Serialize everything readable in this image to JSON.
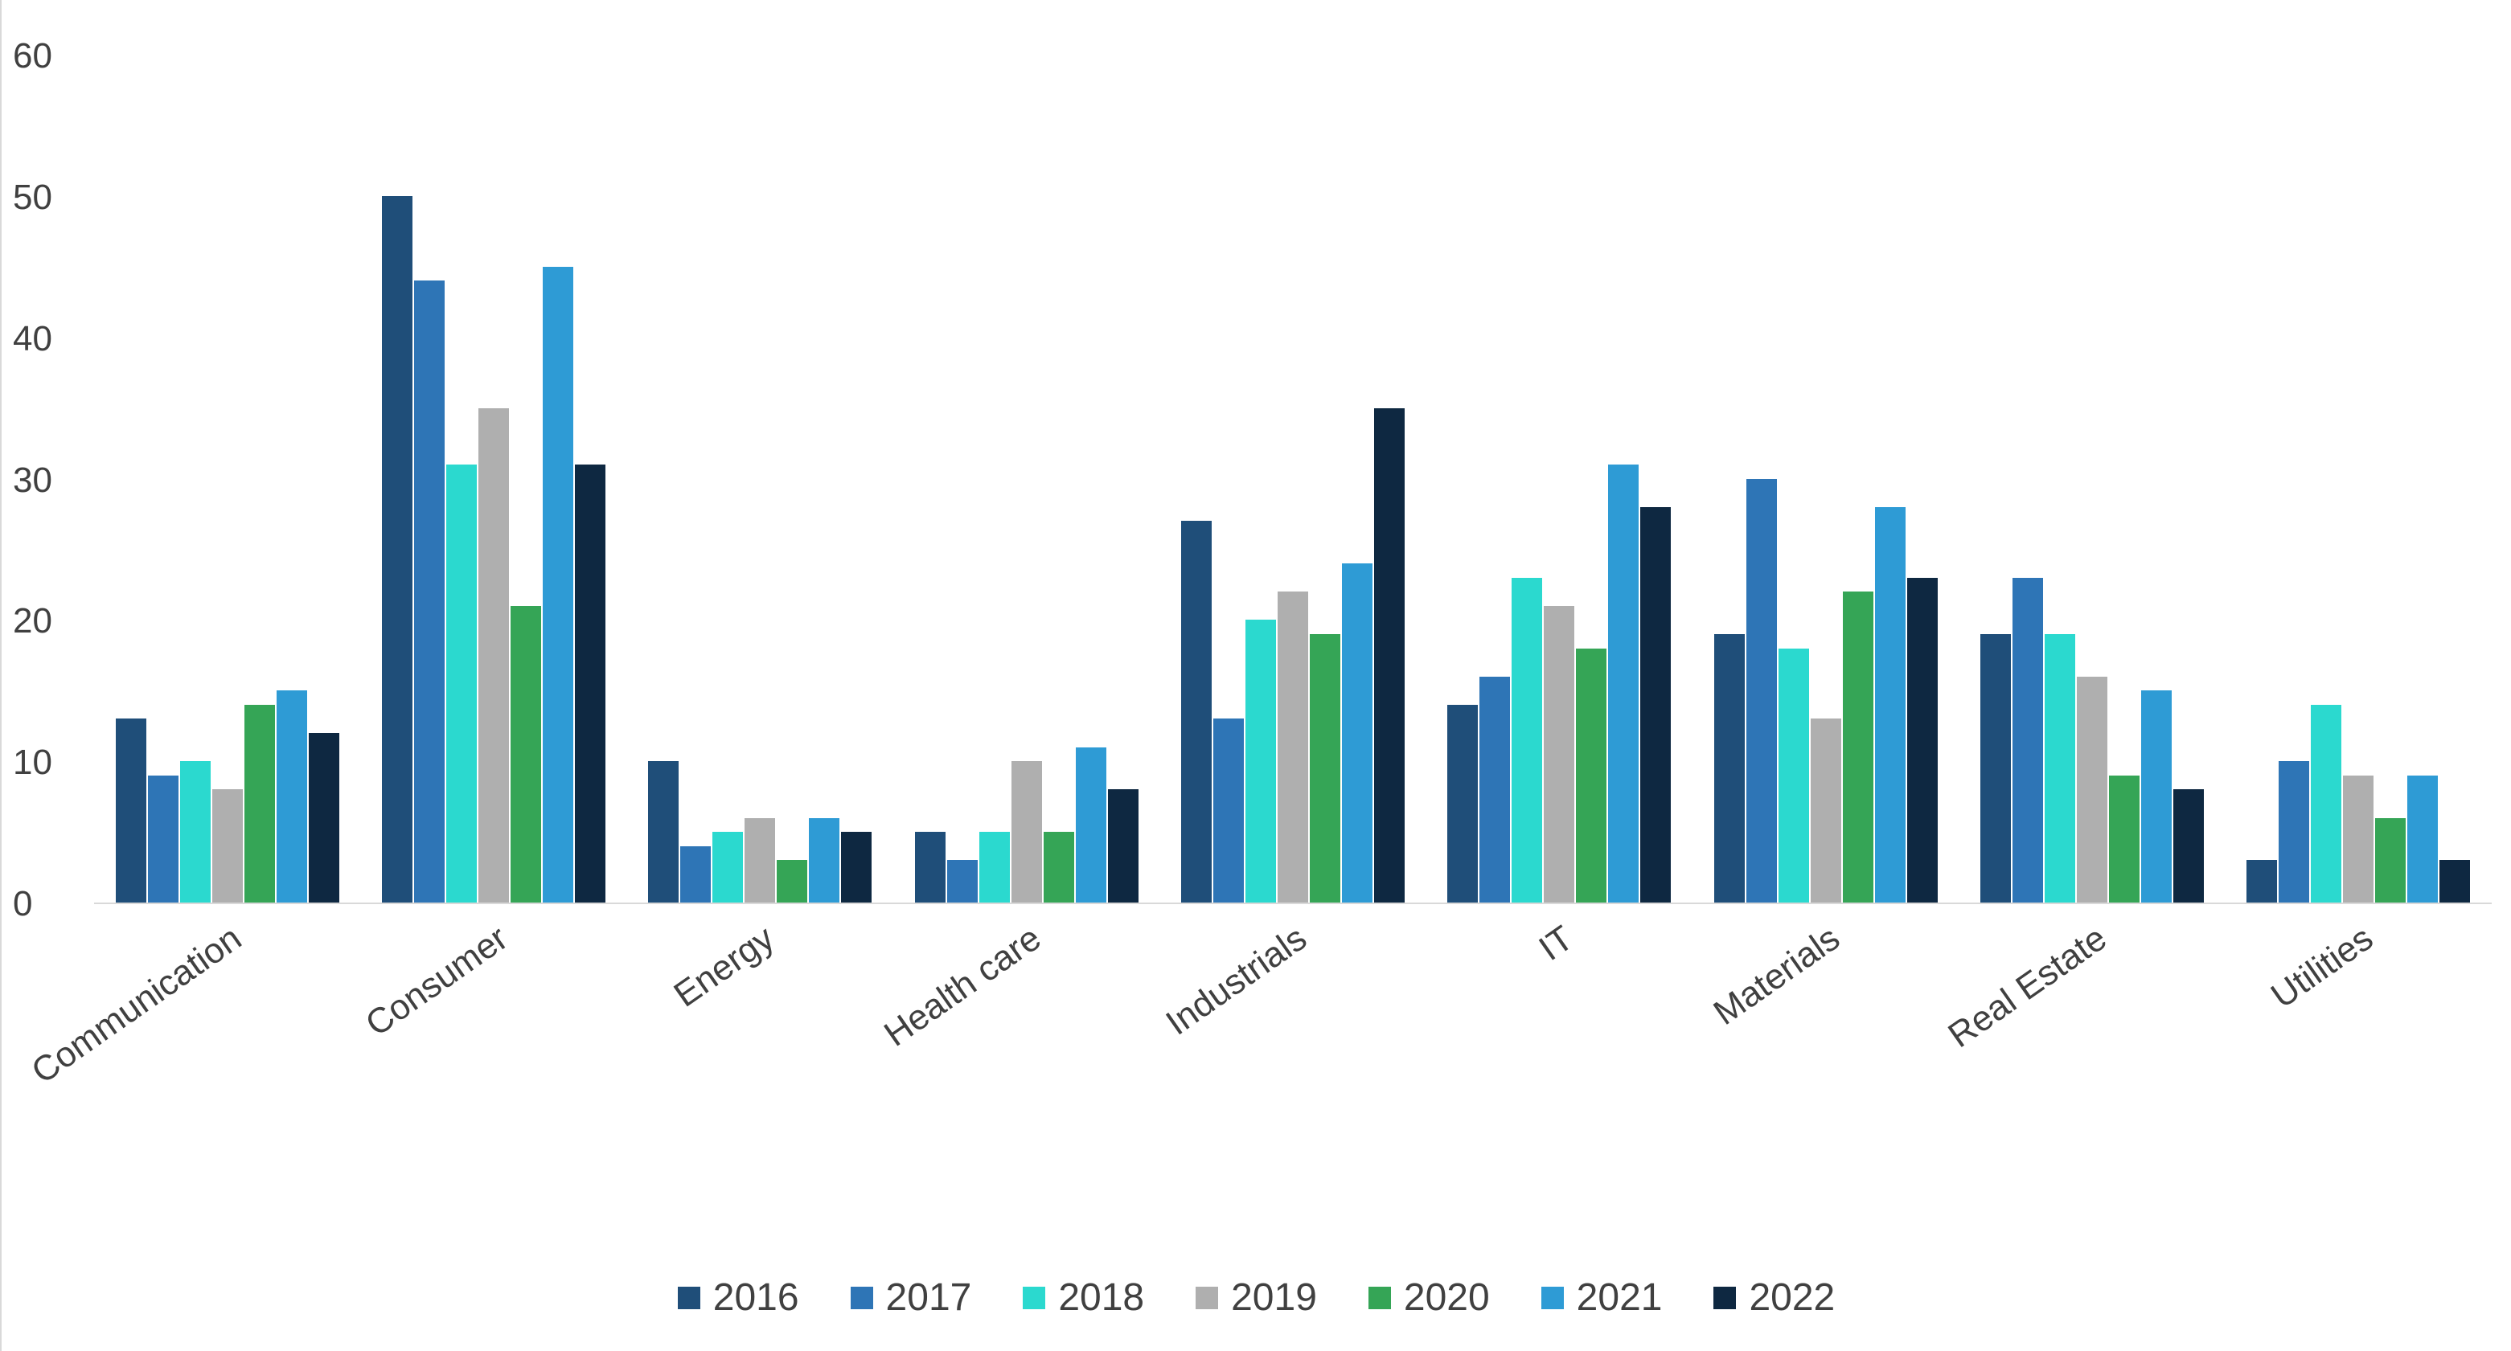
{
  "chart_data": {
    "type": "bar",
    "title": "",
    "xlabel": "",
    "ylabel": "",
    "ylim": [
      0,
      60
    ],
    "yticks": [
      0,
      10,
      20,
      30,
      40,
      50,
      60
    ],
    "grid": false,
    "legend_position": "bottom",
    "categories": [
      "Communication",
      "Consumer",
      "Energy",
      "Health care",
      "Industrials",
      "IT",
      "Materials",
      "Real Estate",
      "Utilities"
    ],
    "series": [
      {
        "name": "2016",
        "color": "#1F4E79",
        "values": [
          13,
          50,
          10,
          5,
          27,
          14,
          19,
          19,
          3
        ]
      },
      {
        "name": "2017",
        "color": "#2E75B6",
        "values": [
          9,
          44,
          4,
          3,
          13,
          16,
          30,
          23,
          10
        ]
      },
      {
        "name": "2018",
        "color": "#2BD9CF",
        "values": [
          10,
          31,
          5,
          5,
          20,
          23,
          18,
          19,
          14
        ]
      },
      {
        "name": "2019",
        "color": "#AFAFAF",
        "values": [
          8,
          35,
          6,
          10,
          22,
          21,
          13,
          16,
          9
        ]
      },
      {
        "name": "2020",
        "color": "#35A556",
        "values": [
          14,
          21,
          3,
          5,
          19,
          18,
          22,
          9,
          6
        ]
      },
      {
        "name": "2021",
        "color": "#2E9BD5",
        "values": [
          15,
          45,
          6,
          11,
          24,
          31,
          28,
          15,
          9
        ]
      },
      {
        "name": "2022",
        "color": "#0E2841",
        "values": [
          12,
          31,
          5,
          8,
          35,
          28,
          23,
          8,
          3
        ]
      }
    ]
  },
  "colors": {
    "axis_line": "#D9D9D9",
    "tick_text": "#404040",
    "background": "#FFFFFF"
  }
}
